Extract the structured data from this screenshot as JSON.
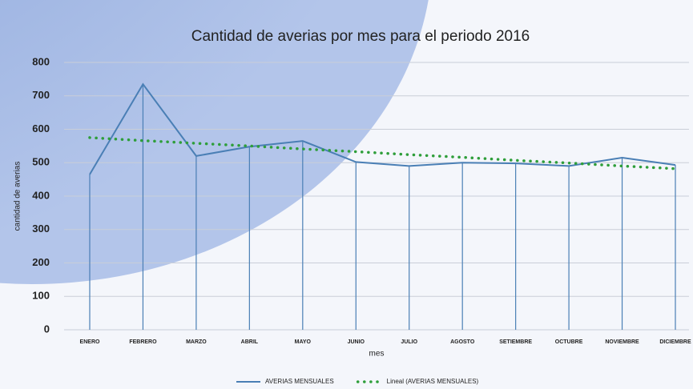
{
  "chart_data": {
    "type": "line",
    "title": "Cantidad de averias por mes para el periodo 2016",
    "x_label": "mes",
    "y_label": "cantidad de averias",
    "categories": [
      "ENERO",
      "FEBRERO",
      "MARZO",
      "ABRIL",
      "MAYO",
      "JUNIO",
      "JULIO",
      "AGOSTO",
      "SETIEMBRE",
      "OCTUBRE",
      "NOVIEMBRE",
      "DICIEMBRE"
    ],
    "series": [
      {
        "name": "AVERIAS MENSUALES",
        "color": "#4a7fb5",
        "values": [
          465,
          735,
          520,
          548,
          565,
          502,
          490,
          500,
          498,
          490,
          515,
          493
        ]
      },
      {
        "name": "Lineal (AVERIAS MENSUALES)",
        "color": "#2e9e3a",
        "dotted": true,
        "values": [
          575,
          566,
          558,
          550,
          541,
          533,
          524,
          516,
          507,
          499,
          490,
          482
        ]
      }
    ],
    "ylim": [
      0,
      800
    ],
    "yticks": [
      0,
      100,
      200,
      300,
      400,
      500,
      600,
      700,
      800
    ],
    "grid": true,
    "drop_lines": true,
    "legend": "bottom"
  }
}
